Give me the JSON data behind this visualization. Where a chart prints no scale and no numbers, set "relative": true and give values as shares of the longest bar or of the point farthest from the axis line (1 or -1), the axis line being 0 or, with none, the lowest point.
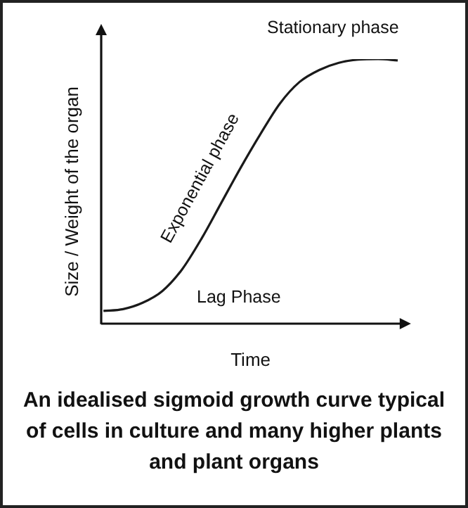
{
  "chart_data": {
    "type": "line",
    "title": "An idealised sigmoid growth curve typical of cells in culture and many higher plants and plant organs",
    "xlabel": "Time",
    "ylabel": "Size / Weight of the organ",
    "relative": true,
    "categories": [
      null,
      null,
      null,
      null,
      null,
      null,
      null,
      null,
      null,
      null,
      null,
      null,
      null,
      null,
      null,
      null
    ],
    "series": [
      {
        "color": "#1a1a1a",
        "values": [
          0.05,
          0.057,
          0.081,
          0.125,
          0.206,
          0.323,
          0.457,
          0.591,
          0.717,
          0.833,
          0.914,
          0.959,
          0.986,
          0.998,
          1,
          0.995
        ]
      }
    ],
    "annotations": [
      "Stationary phase",
      "Exponential phase",
      "Lag Phase"
    ],
    "marker": "none",
    "line_style": "solid",
    "grid": false,
    "legend": false,
    "tick_labels": false
  }
}
